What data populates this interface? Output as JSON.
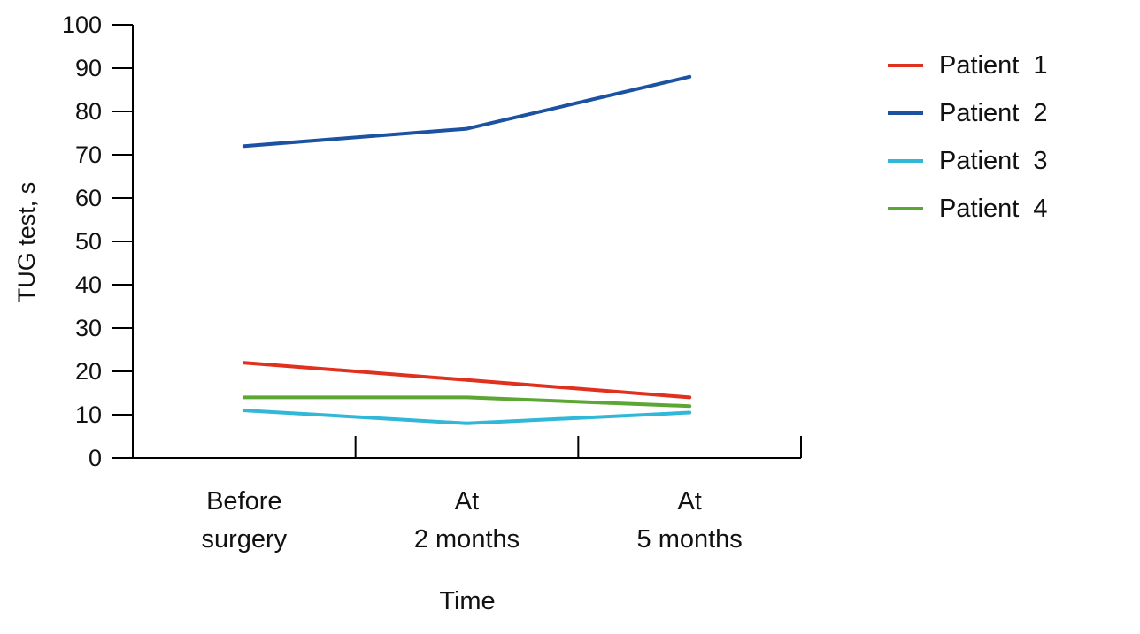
{
  "figure": {
    "background": "#ffffff",
    "text_color": "#111111",
    "axis_color": "#000000"
  },
  "chart_data": {
    "type": "line",
    "title": "",
    "xlabel": "Time",
    "ylabel": "TUG test, s",
    "ylim": [
      0,
      100
    ],
    "yticks": [
      0,
      10,
      20,
      30,
      40,
      50,
      60,
      70,
      80,
      90,
      100
    ],
    "grid": false,
    "legend_position": "right",
    "categories": [
      "Before surgery",
      "At 2 months",
      "At 5 months"
    ],
    "category_lines": [
      [
        "Before",
        "surgery"
      ],
      [
        "At",
        "2 months"
      ],
      [
        "At",
        "5 months"
      ]
    ],
    "series": [
      {
        "name": "Patient  1",
        "color": "#e0301e",
        "values": [
          22,
          18,
          14
        ]
      },
      {
        "name": "Patient  2",
        "color": "#1c52a2",
        "values": [
          72,
          76,
          88
        ]
      },
      {
        "name": "Patient  3",
        "color": "#31b7d8",
        "values": [
          11,
          8,
          10.5
        ]
      },
      {
        "name": "Patient  4",
        "color": "#5ca634",
        "values": [
          14,
          14,
          12
        ]
      }
    ]
  }
}
